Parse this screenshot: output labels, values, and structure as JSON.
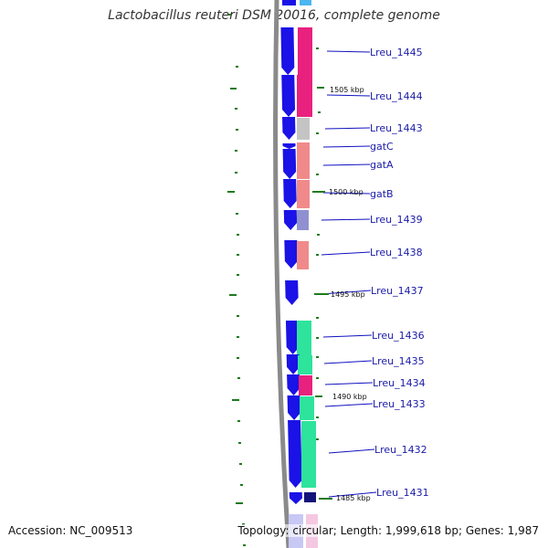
{
  "title": "Lactobacillus reuteri DSM 20016, complete genome",
  "footer": {
    "accession_label": "Accession:",
    "accession_value": "NC_009513",
    "topology_text": "Topology: circular; Length: 1,999,618 bp; Genes: 1,987"
  },
  "colors": {
    "backbone": "#8a8a8a",
    "cds_strand": "#1a12e6",
    "tick": "#1e7b1e",
    "label_line": "#1010c0",
    "label_text": "#1a1aa8",
    "scale_text": "#111111"
  },
  "scale_labels": [
    "1505 kbp",
    "1500 kbp",
    "1495 kbp",
    "1490 kbp",
    "1485 kbp"
  ],
  "genes": [
    {
      "label": "Lreu_1445",
      "category_color": "#e8217e"
    },
    {
      "label": "Lreu_1444",
      "category_color": "#e8217e"
    },
    {
      "label": "Lreu_1443",
      "category_color": "#c4c4c4"
    },
    {
      "label": "gatC",
      "category_color": "#f08a8a"
    },
    {
      "label": "gatA",
      "category_color": "#f08a8a"
    },
    {
      "label": "gatB",
      "category_color": "#f08a8a"
    },
    {
      "label": "Lreu_1439",
      "category_color": "#9090d0"
    },
    {
      "label": "Lreu_1438",
      "category_color": "#f08a8a"
    },
    {
      "label": "Lreu_1437",
      "category_color": "#ffffff"
    },
    {
      "label": "Lreu_1436",
      "category_color": "#2ee39c"
    },
    {
      "label": "Lreu_1435",
      "category_color": "#2ee39c"
    },
    {
      "label": "Lreu_1434",
      "category_color": "#e8217e"
    },
    {
      "label": "Lreu_1433",
      "category_color": "#2ee39c"
    },
    {
      "label": "Lreu_1432",
      "category_color": "#2ee39c"
    },
    {
      "label": "Lreu_1431",
      "category_color": "#14137a"
    }
  ]
}
